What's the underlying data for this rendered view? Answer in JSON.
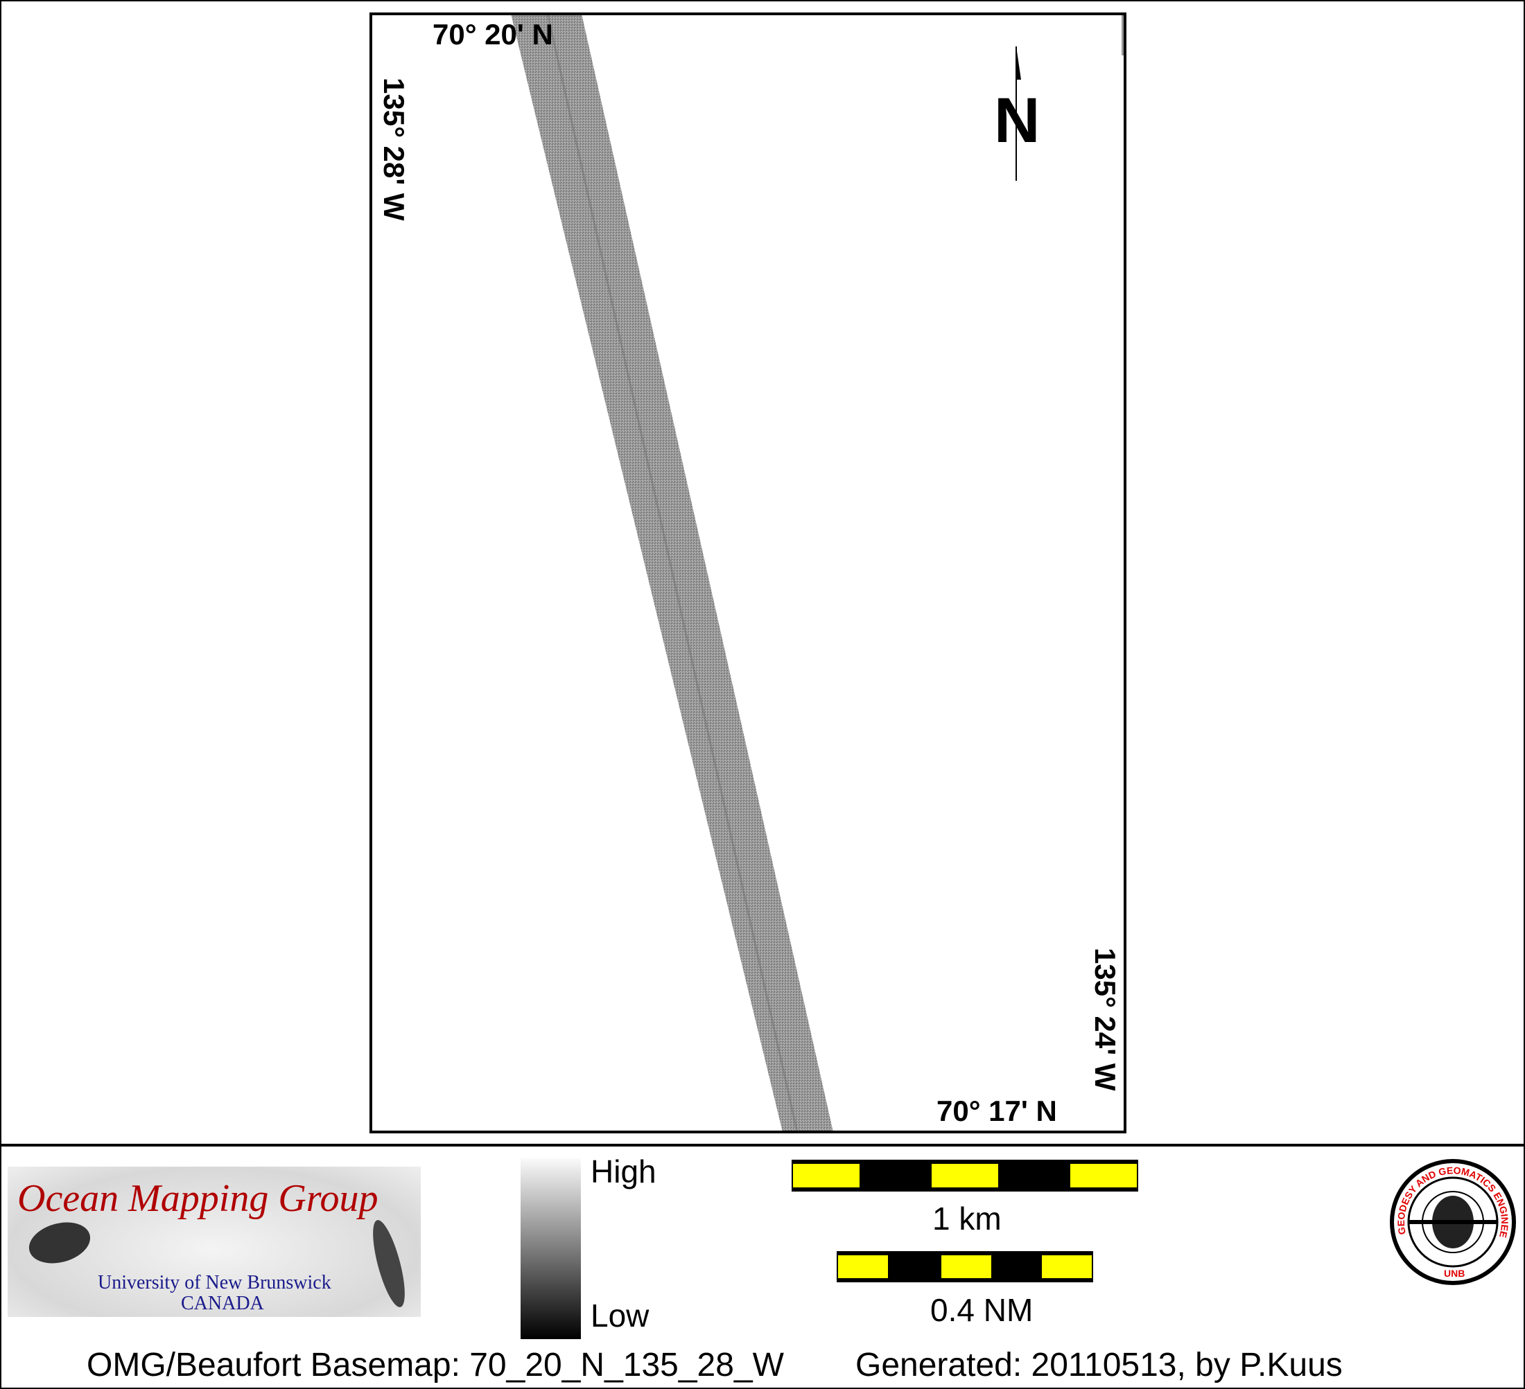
{
  "map": {
    "top_lat_label": "70° 20' N",
    "bottom_lat_label": "70° 17' N",
    "left_lon_label": "135° 28' W",
    "right_lon_label": "135° 24' W",
    "north_label": "N",
    "north_arrow_icon": "north-arrow-icon"
  },
  "legend": {
    "logo_title": "Ocean Mapping Group",
    "logo_university": "University of New Brunswick",
    "logo_country": "CANADA",
    "colorbar_high": "High",
    "colorbar_low": "Low",
    "scale_km_label": "1 km",
    "scale_nm_label": "0.4 NM",
    "unb_seal_text": "GEODESY AND GEOMATICS ENGINEERING UNB",
    "colors": {
      "scale_yellow": "#ffff00",
      "scale_black": "#000000",
      "logo_red": "#b00000",
      "logo_blue": "#1a1a8c",
      "seal_red": "#e00000"
    }
  },
  "footer": {
    "basemap": "OMG/Beaufort Basemap: 70_20_N_135_28_W",
    "generated": "Generated: 20110513, by P.Kuus"
  }
}
